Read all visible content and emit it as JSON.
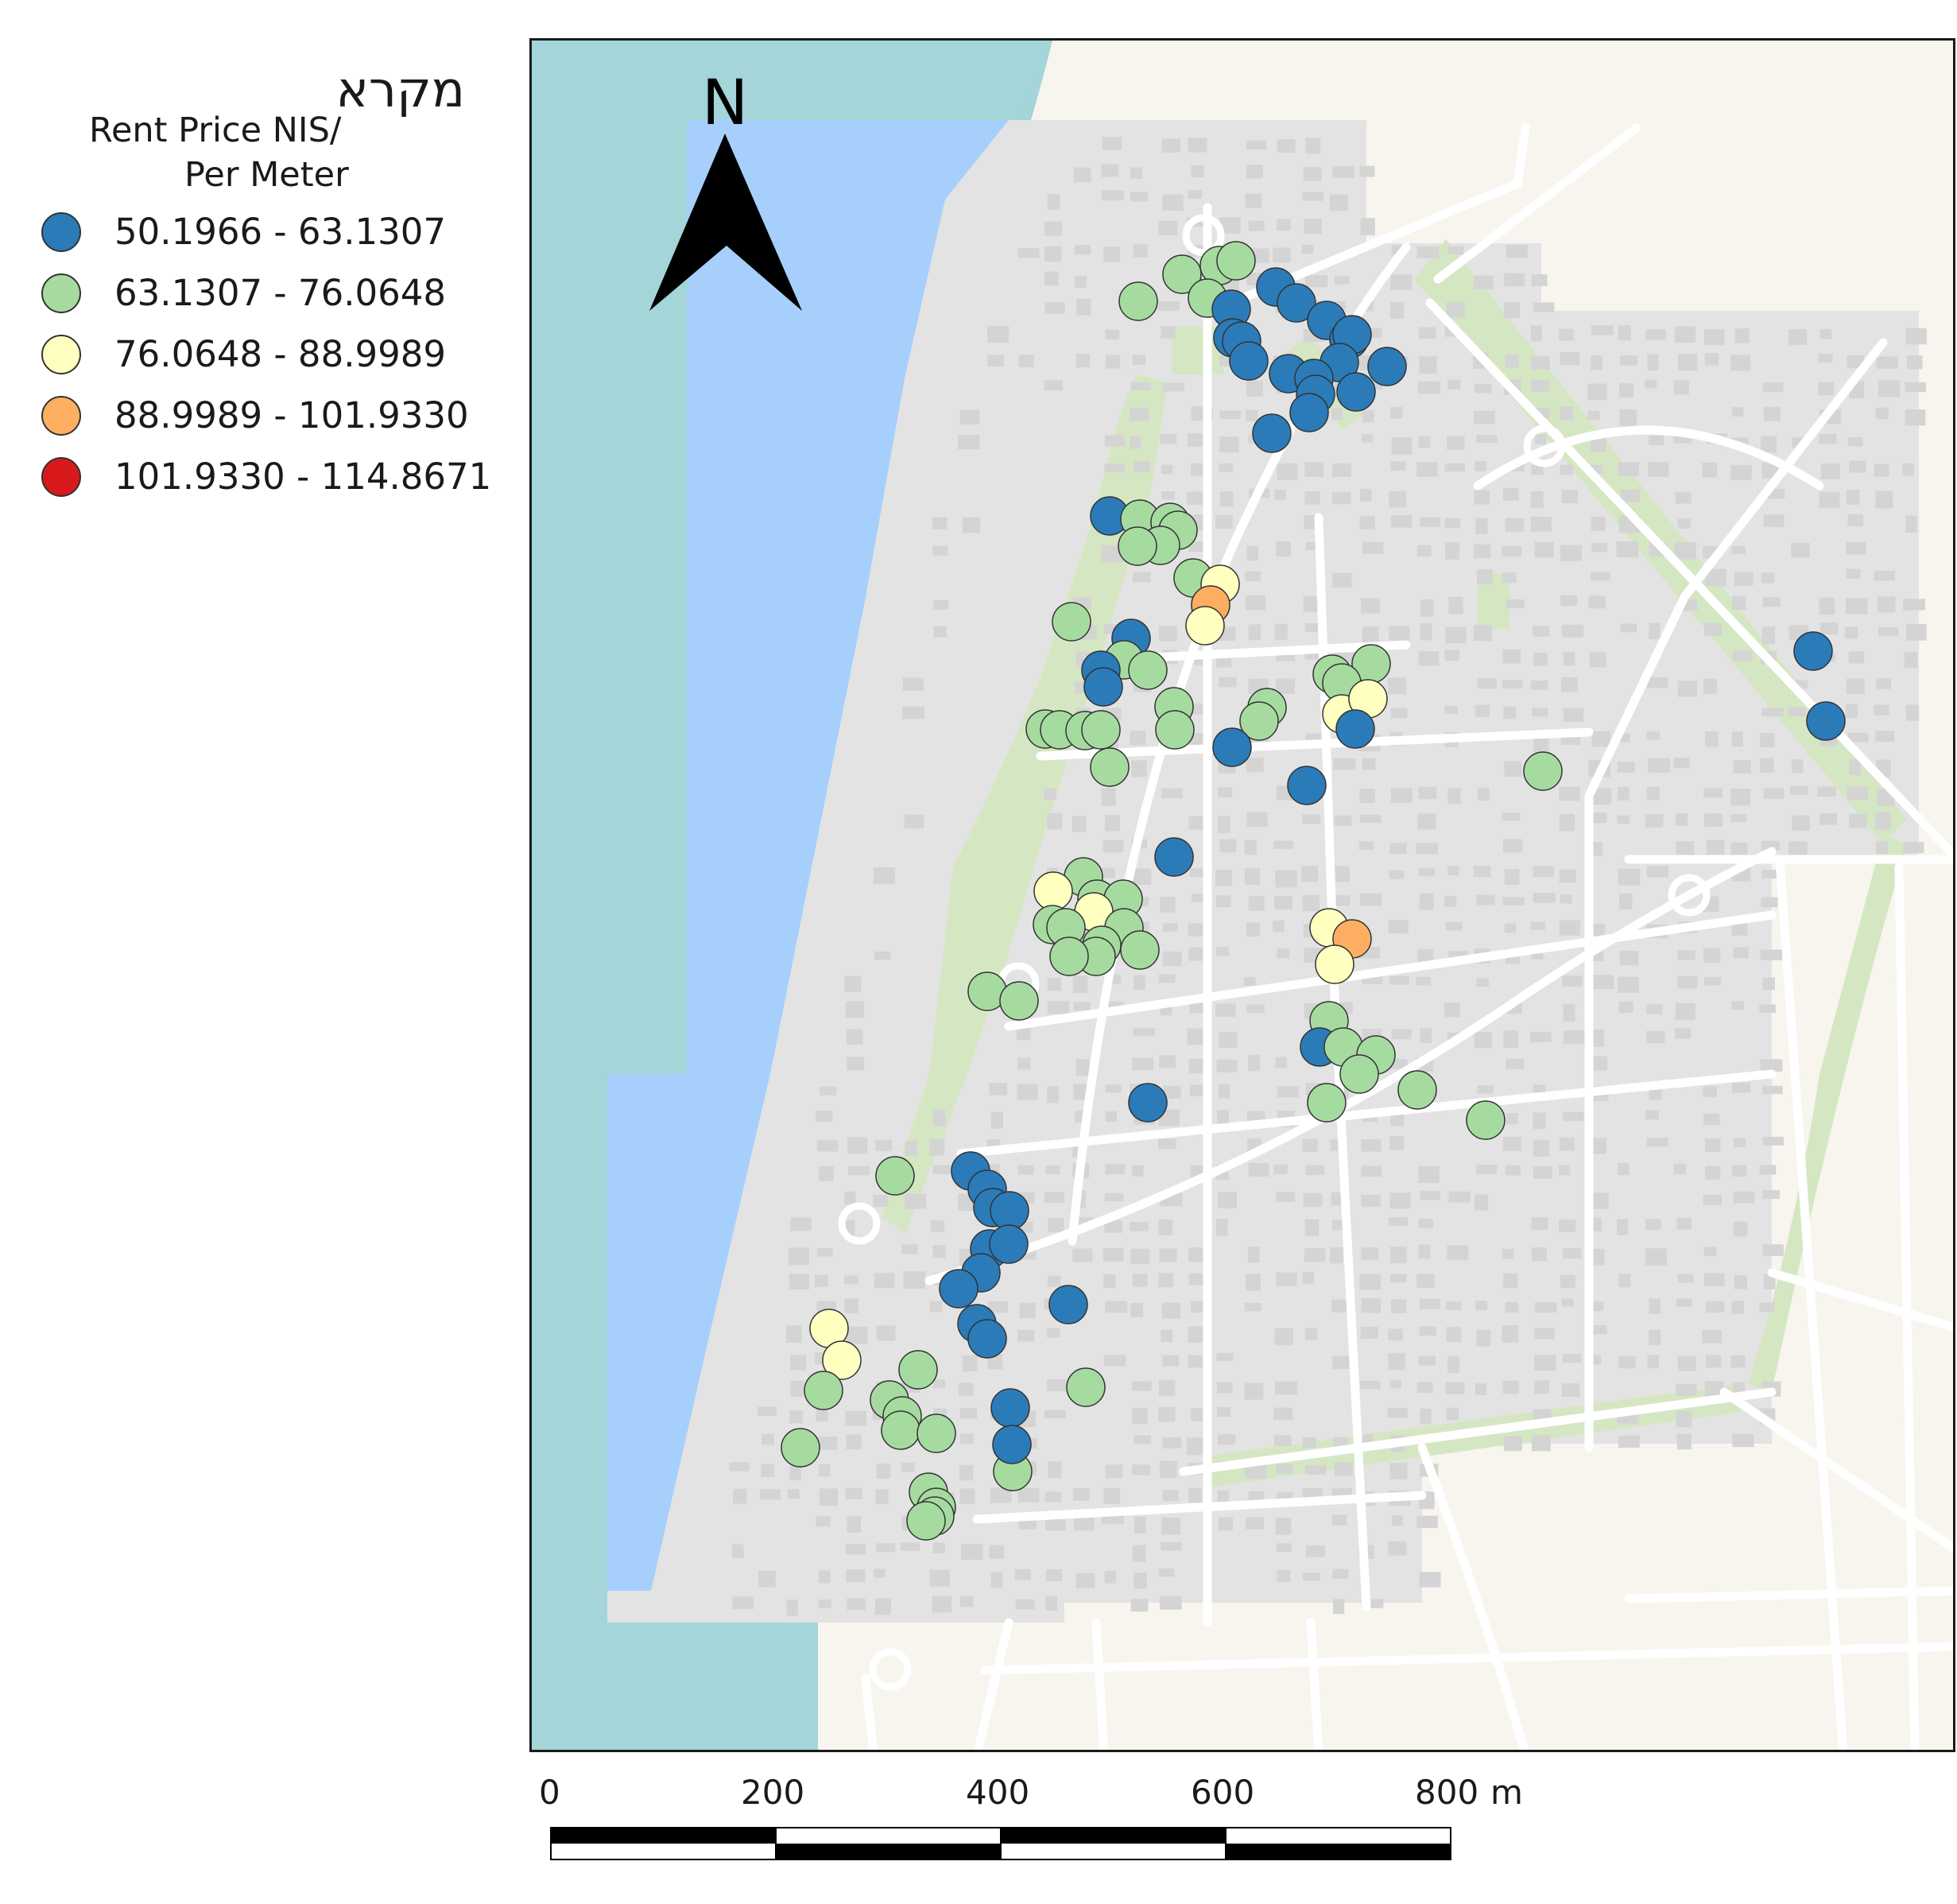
{
  "legend": {
    "title": "מקרא",
    "subtitle_line1": "Rent Price NIS/",
    "subtitle_line2": "Per Meter",
    "classes": [
      {
        "label": "50.1966 - 63.1307",
        "color": "#2b7bb9"
      },
      {
        "label": "63.1307 - 76.0648",
        "color": "#a6dba0"
      },
      {
        "label": "76.0648 - 88.9989",
        "color": "#ffffbf"
      },
      {
        "label": "88.9989 - 101.9330",
        "color": "#fdae61"
      },
      {
        "label": "101.9330 - 114.8671",
        "color": "#d7191c"
      }
    ]
  },
  "north_arrow": {
    "label": "N"
  },
  "scale_bar": {
    "ticks": [
      "0",
      "200",
      "400",
      "600",
      "800"
    ],
    "unit": "m"
  },
  "map_colors": {
    "sea_dark": "#a3d5d9",
    "sea_light": "#a6d0fb",
    "land": "#f7f5ee",
    "urban": "#e3e3e3",
    "building": "#d4d4d4",
    "park": "#d5e7c2",
    "road": "#ffffff"
  }
}
